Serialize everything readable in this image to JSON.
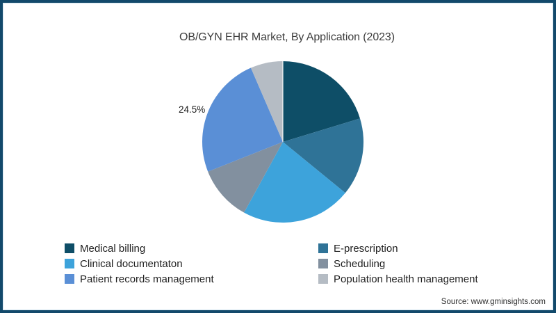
{
  "frame": {
    "border_color": "#12496b"
  },
  "chart_data": {
    "type": "pie",
    "title": "OB/GYN EHR Market, By Application (2023)",
    "categories": [
      "Medical billing",
      "E-prescription",
      "Clinical documentaton",
      "Scheduling",
      "Patient records management",
      "Population health management"
    ],
    "values": [
      20.3,
      15.6,
      22.1,
      11.0,
      24.5,
      6.5
    ],
    "unit": "percent",
    "colors": [
      "#0e4e67",
      "#2f7397",
      "#3da3db",
      "#82909f",
      "#5a8fd6",
      "#b5bcc4"
    ],
    "start_angle": "12 o'clock",
    "direction": "clockwise",
    "data_labels": [
      {
        "category": "Patient records management",
        "text": "24.5%"
      }
    ],
    "legend_position": "bottom-two-columns"
  },
  "footer": {
    "source": "Source: www.gminsights.com"
  }
}
